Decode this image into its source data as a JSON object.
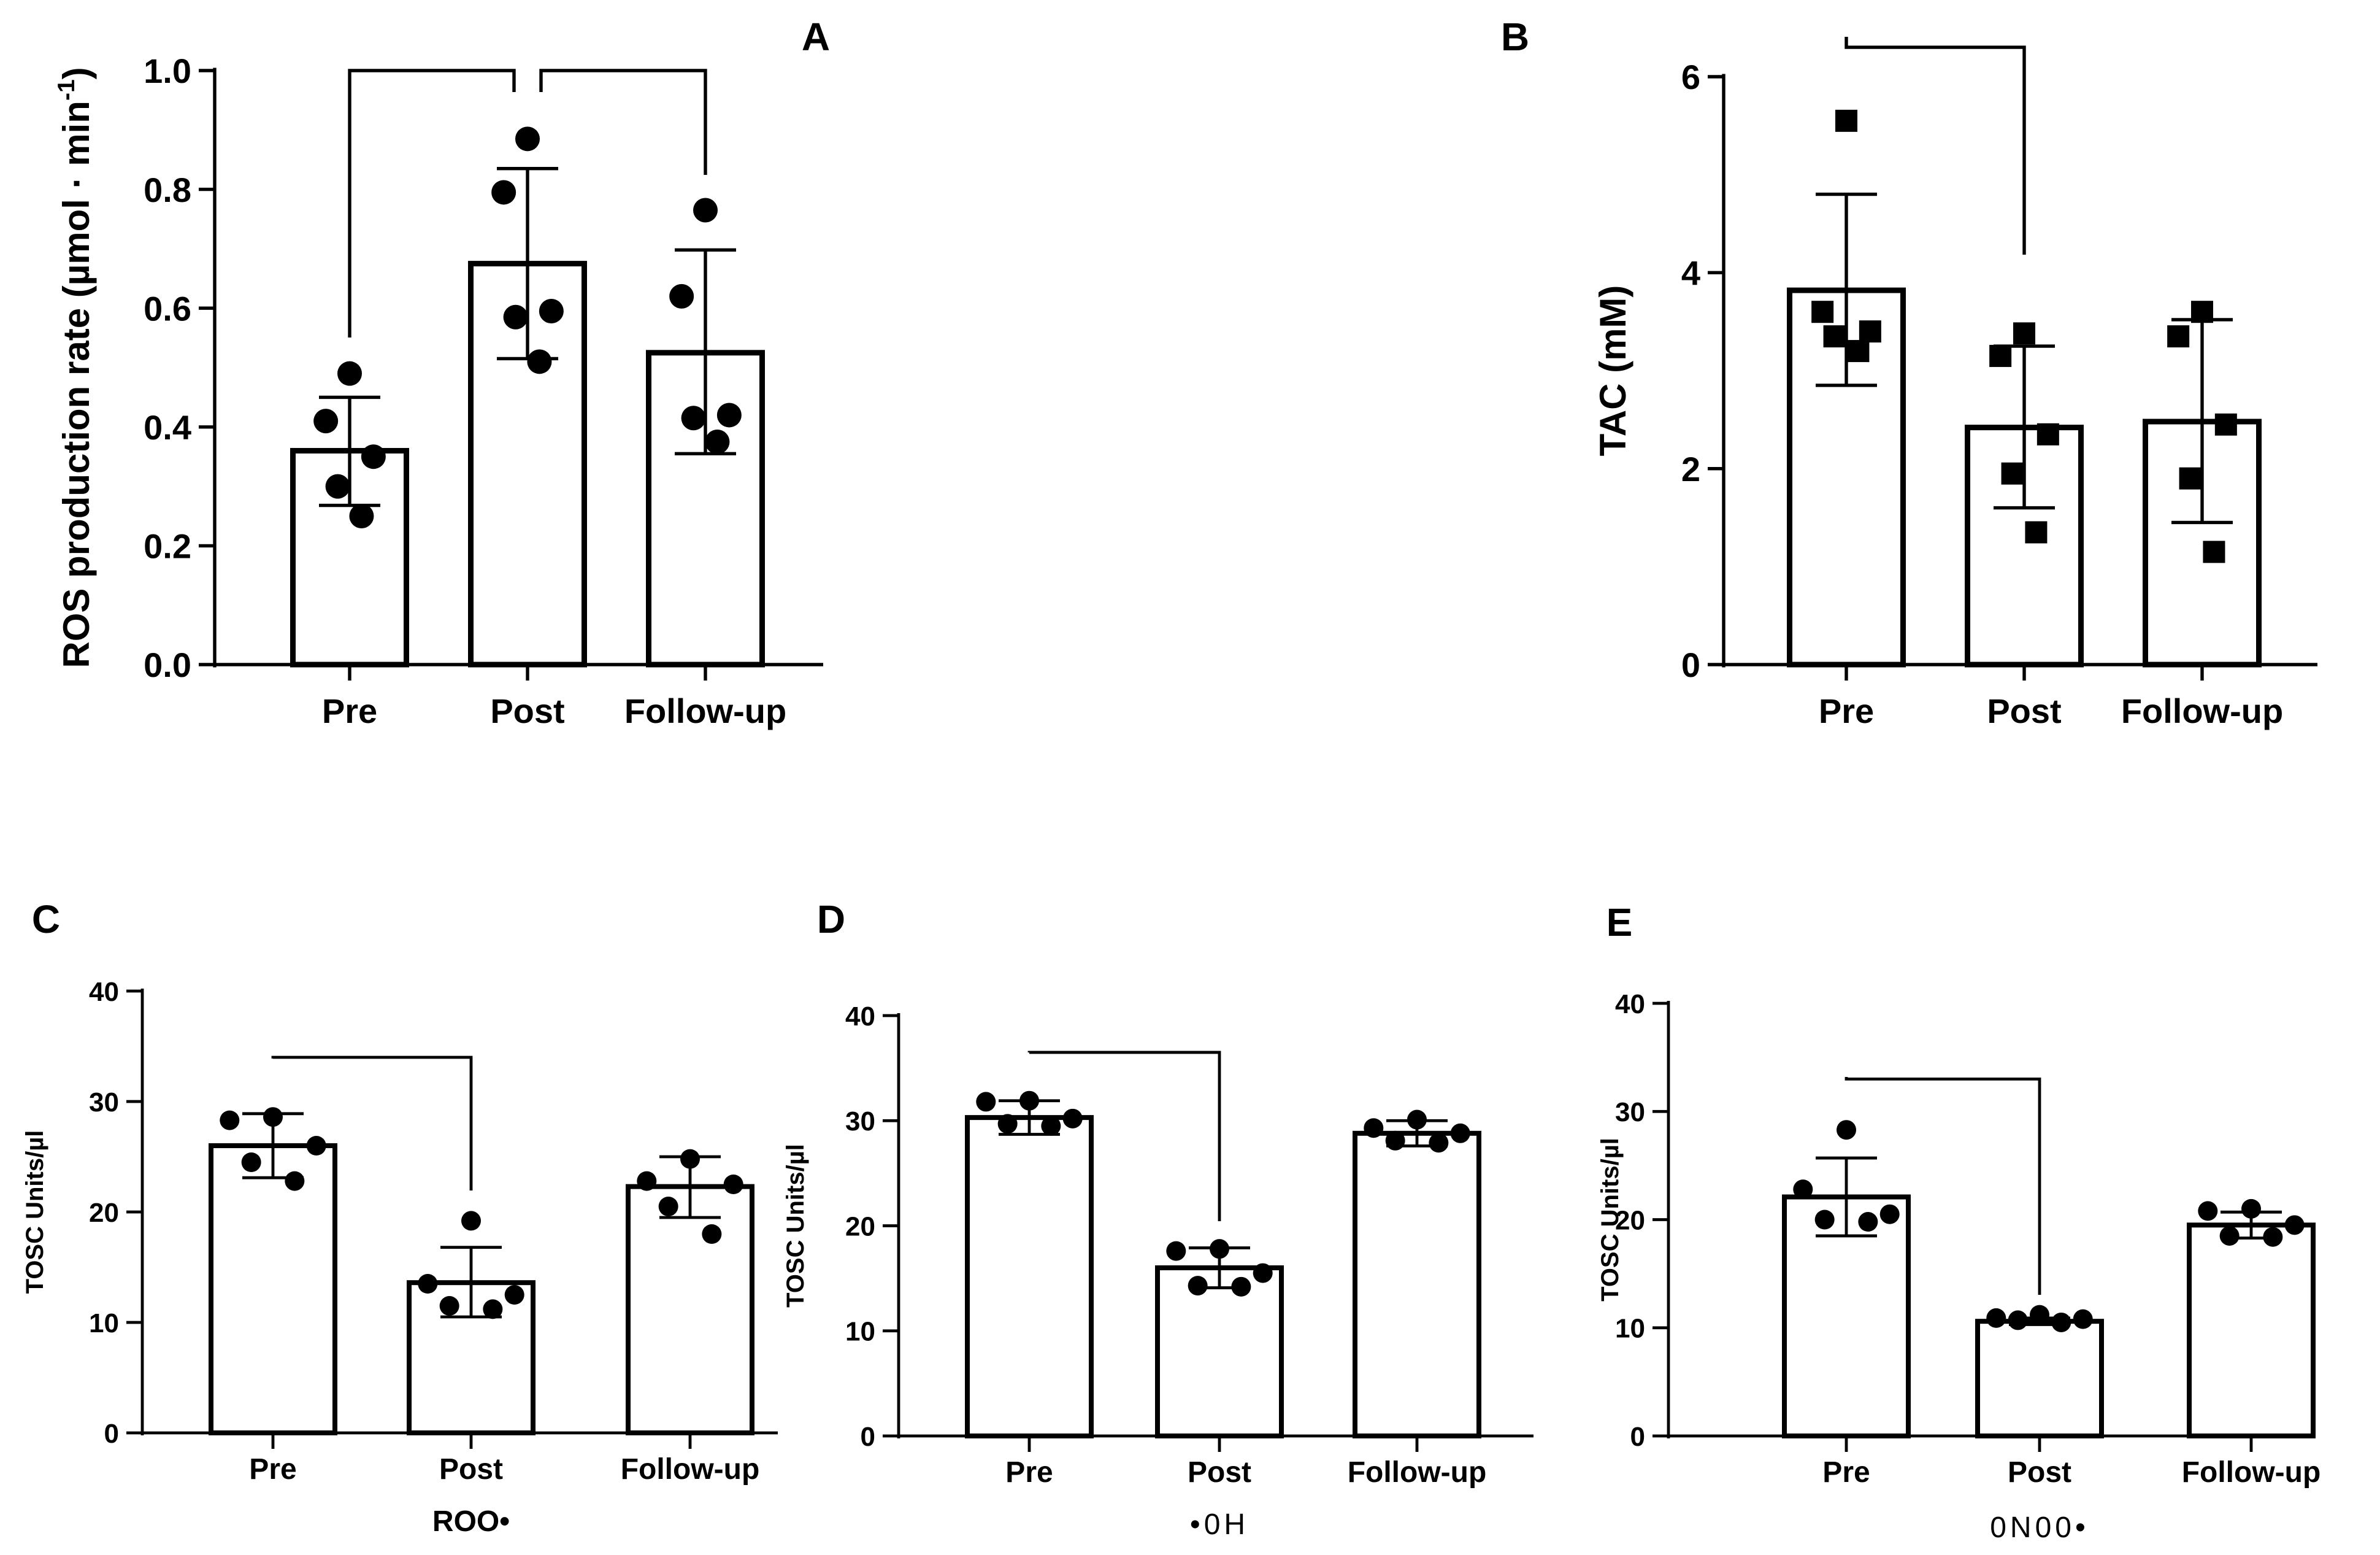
{
  "chart_data": [
    {
      "panel_label": "A",
      "type": "bar",
      "categories": [
        "Pre",
        "Post",
        "Follow-up"
      ],
      "ylabel": "ROS production rate (µmol · min",
      "ylabel_sup": "-1",
      "ylabel_tail": ")",
      "xlabel": "",
      "ylim": [
        0,
        1.0
      ],
      "yticks": [
        "0.0",
        "0.2",
        "0.4",
        "0.6",
        "0.8",
        "1.0"
      ],
      "values": [
        0.36,
        0.675,
        0.525
      ],
      "errors": [
        [
          0.268,
          0.45
        ],
        [
          0.515,
          0.835
        ],
        [
          0.355,
          0.698
        ]
      ],
      "points": [
        [
          0.49,
          0.41,
          0.35,
          0.3,
          0.25
        ],
        [
          0.885,
          0.795,
          0.595,
          0.585,
          0.51
        ],
        [
          0.765,
          0.62,
          0.42,
          0.415,
          0.375
        ]
      ],
      "marker": "circle",
      "brackets": [
        {
          "from": "Pre",
          "to": "Post",
          "y": 1.0
        },
        {
          "from": "Post",
          "to": "Follow-up",
          "y": 1.0
        }
      ]
    },
    {
      "panel_label": "B",
      "type": "bar",
      "categories": [
        "Pre",
        "Post",
        "Follow-up"
      ],
      "ylabel": "TAC (mM)",
      "xlabel": "",
      "ylim": [
        0,
        6
      ],
      "yticks": [
        "0",
        "2",
        "4",
        "6"
      ],
      "values": [
        3.82,
        2.42,
        2.48
      ],
      "errors": [
        [
          2.85,
          4.8
        ],
        [
          1.6,
          3.25
        ],
        [
          1.45,
          3.52
        ]
      ],
      "points": [
        [
          5.55,
          3.6,
          3.4,
          3.35,
          3.2
        ],
        [
          3.38,
          3.15,
          2.35,
          1.95,
          1.35
        ],
        [
          3.6,
          3.35,
          2.45,
          1.9,
          1.15
        ]
      ],
      "marker": "square",
      "brackets": [
        {
          "from": "Pre",
          "to": "Post",
          "y": 6.3
        }
      ]
    },
    {
      "panel_label": "C",
      "type": "bar",
      "categories": [
        "Pre",
        "Post",
        "Follow-up"
      ],
      "ylabel": "TOSC Units/µl",
      "xlabel": "ROO•",
      "ylim": [
        0,
        40
      ],
      "yticks": [
        "0",
        "10",
        "20",
        "30",
        "40"
      ],
      "values": [
        26.0,
        13.6,
        22.3
      ],
      "errors": [
        [
          23.1,
          28.9
        ],
        [
          10.5,
          16.8
        ],
        [
          19.5,
          25.0
        ]
      ],
      "points": [
        [
          28.6,
          28.3,
          26.0,
          24.5,
          22.8
        ],
        [
          19.2,
          13.5,
          12.5,
          11.5,
          11.2
        ],
        [
          24.8,
          22.8,
          22.5,
          20.5,
          18.0
        ]
      ],
      "marker": "circle",
      "brackets": [
        {
          "from": "Pre",
          "to": "Post",
          "y": 34.0
        }
      ]
    },
    {
      "panel_label": "D",
      "type": "bar",
      "categories": [
        "Pre",
        "Post",
        "Follow-up"
      ],
      "ylabel": "TOSC Units/µl",
      "xlabel": "•0H",
      "ylim": [
        0,
        40
      ],
      "yticks": [
        "0",
        "10",
        "20",
        "30",
        "40"
      ],
      "values": [
        30.3,
        16.0,
        28.8
      ],
      "errors": [
        [
          28.7,
          31.9
        ],
        [
          14.1,
          17.9
        ],
        [
          27.6,
          30.0
        ]
      ],
      "points": [
        [
          31.9,
          31.8,
          30.2,
          29.7,
          29.5
        ],
        [
          17.8,
          17.6,
          15.5,
          14.3,
          14.2
        ],
        [
          30.1,
          29.3,
          28.8,
          28.1,
          27.9
        ]
      ],
      "marker": "circle",
      "brackets": [
        {
          "from": "Pre",
          "to": "Post",
          "y": 36.5
        }
      ]
    },
    {
      "panel_label": "E",
      "type": "bar",
      "categories": [
        "Pre",
        "Post",
        "Follow-up"
      ],
      "ylabel": "TOSC Units/µl",
      "xlabel": "0N00•",
      "ylim": [
        0,
        40
      ],
      "yticks": [
        "0",
        "10",
        "20",
        "30",
        "40"
      ],
      "values": [
        22.1,
        10.6,
        19.5
      ],
      "errors": [
        [
          18.5,
          25.7
        ],
        [
          10.3,
          10.9
        ],
        [
          18.3,
          20.7
        ]
      ],
      "points": [
        [
          28.3,
          22.8,
          20.5,
          20.0,
          19.8
        ],
        [
          11.2,
          10.9,
          10.8,
          10.7,
          10.5
        ],
        [
          21.0,
          20.8,
          19.5,
          18.5,
          18.4
        ]
      ],
      "marker": "circle",
      "brackets": [
        {
          "from": "Pre",
          "to": "Post",
          "y": 33.0
        }
      ]
    }
  ]
}
